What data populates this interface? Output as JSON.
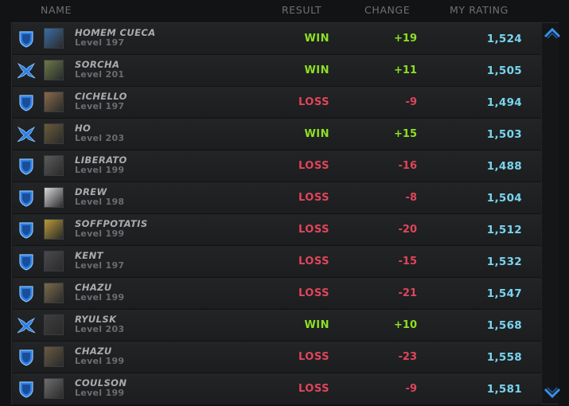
{
  "header": {
    "name": "NAME",
    "result": "RESULT",
    "change": "CHANGE",
    "rating": "MY RATING"
  },
  "rows": [
    {
      "race": "protoss",
      "avatar": "#3a6ea5",
      "name": "HOMEM CUECA",
      "level": "Level 197",
      "result": "WIN",
      "change": "+19",
      "rating": "1,524"
    },
    {
      "race": "terran",
      "avatar": "#6b7a4a",
      "name": "SORCHA",
      "level": "Level 201",
      "result": "WIN",
      "change": "+11",
      "rating": "1,505"
    },
    {
      "race": "protoss",
      "avatar": "#8a6a4a",
      "name": "CICHELLO",
      "level": "Level 197",
      "result": "LOSS",
      "change": "-9",
      "rating": "1,494"
    },
    {
      "race": "terran",
      "avatar": "#6a5a3a",
      "name": "HO",
      "level": "Level 203",
      "result": "WIN",
      "change": "+15",
      "rating": "1,503"
    },
    {
      "race": "protoss",
      "avatar": "#5a5a5a",
      "name": "LIBERATO",
      "level": "Level 199",
      "result": "LOSS",
      "change": "-16",
      "rating": "1,488"
    },
    {
      "race": "protoss",
      "avatar": "#d8d8dc",
      "name": "DREW",
      "level": "Level 198",
      "result": "LOSS",
      "change": "-8",
      "rating": "1,504"
    },
    {
      "race": "protoss",
      "avatar": "#b89a3a",
      "name": "SOFFPOTATIS",
      "level": "Level 199",
      "result": "LOSS",
      "change": "-20",
      "rating": "1,512"
    },
    {
      "race": "protoss",
      "avatar": "#4a4a4e",
      "name": "KENT",
      "level": "Level 197",
      "result": "LOSS",
      "change": "-15",
      "rating": "1,532"
    },
    {
      "race": "protoss",
      "avatar": "#7a6a4a",
      "name": "CHAZU",
      "level": "Level 199",
      "result": "LOSS",
      "change": "-21",
      "rating": "1,547"
    },
    {
      "race": "terran",
      "avatar": "#3e3e3e",
      "name": "RYULSK",
      "level": "Level 203",
      "result": "WIN",
      "change": "+10",
      "rating": "1,568"
    },
    {
      "race": "protoss",
      "avatar": "#6a5a42",
      "name": "CHAZU",
      "level": "Level 199",
      "result": "LOSS",
      "change": "-23",
      "rating": "1,558"
    },
    {
      "race": "protoss",
      "avatar": "#6e6e6e",
      "name": "COULSON",
      "level": "Level 199",
      "result": "LOSS",
      "change": "-9",
      "rating": "1,581"
    }
  ],
  "icons": {
    "protoss": "protoss-shield-icon",
    "terran": "terran-crossed-icon",
    "scroll_up": "scroll-up-chevron-icon",
    "scroll_down": "scroll-down-chevron-icon"
  },
  "colors": {
    "win": "#8de023",
    "loss": "#e0455a",
    "rating": "#79d4ee",
    "icon_blue": "#2e7fe0"
  }
}
